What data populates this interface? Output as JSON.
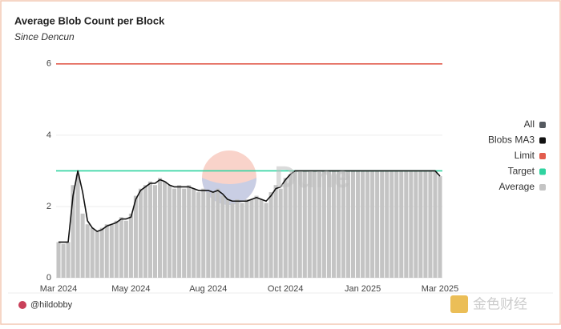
{
  "chart_data": {
    "type": "bar",
    "title": "Average Blob Count per Block",
    "subtitle": "Since Dencun",
    "watermark": "Dune",
    "source": "@hildobby",
    "logo_text": "金色财经",
    "categories": [
      "Mar 2024",
      null,
      null,
      null,
      null,
      null,
      null,
      null,
      null,
      null,
      null,
      null,
      null,
      null,
      null,
      "May 2024",
      null,
      null,
      null,
      null,
      null,
      null,
      null,
      null,
      null,
      null,
      null,
      null,
      null,
      null,
      null,
      "Aug 2024",
      null,
      null,
      null,
      null,
      null,
      null,
      null,
      null,
      null,
      null,
      null,
      null,
      null,
      null,
      null,
      "Oct 2024",
      null,
      null,
      null,
      null,
      null,
      null,
      null,
      null,
      null,
      null,
      null,
      null,
      null,
      null,
      null,
      "Jan 2025",
      null,
      null,
      null,
      null,
      null,
      null,
      null,
      null,
      null,
      null,
      null,
      null,
      null,
      null,
      null,
      "Mar 2025"
    ],
    "ylim": [
      0,
      6.4
    ],
    "yticks": [
      0,
      2,
      4,
      6
    ],
    "grid": true,
    "legend_position": "right",
    "series": [
      {
        "name": "All",
        "color": "#555a60"
      },
      {
        "name": "Blobs MA3",
        "type": "line",
        "color": "#111111",
        "values": [
          1.0,
          1.0,
          1.0,
          2.3,
          3.0,
          2.4,
          1.6,
          1.4,
          1.3,
          1.35,
          1.45,
          1.5,
          1.55,
          1.65,
          1.65,
          1.7,
          2.2,
          2.45,
          2.55,
          2.65,
          2.65,
          2.75,
          2.7,
          2.6,
          2.55,
          2.55,
          2.55,
          2.55,
          2.5,
          2.45,
          2.45,
          2.45,
          2.4,
          2.45,
          2.35,
          2.2,
          2.15,
          2.15,
          2.15,
          2.15,
          2.2,
          2.25,
          2.2,
          2.15,
          2.3,
          2.5,
          2.55,
          2.75,
          2.9,
          3.0,
          3.0,
          3.0,
          3.0,
          3.0,
          3.0,
          3.0,
          3.0,
          3.0,
          3.0,
          3.0,
          3.0,
          3.0,
          3.0,
          3.0,
          3.0,
          3.0,
          3.0,
          3.0,
          3.0,
          3.0,
          3.0,
          3.0,
          3.0,
          3.0,
          3.0,
          3.0,
          3.0,
          3.0,
          3.0,
          2.85
        ]
      },
      {
        "name": "Limit",
        "type": "hline",
        "color": "#e25c4d",
        "value": 6
      },
      {
        "name": "Target",
        "type": "hline",
        "color": "#2fd3a0",
        "value": 3
      },
      {
        "name": "Average",
        "type": "bar",
        "color": "#c4c4c4",
        "values": [
          1.0,
          0.95,
          1.0,
          2.6,
          2.9,
          1.8,
          1.5,
          1.4,
          1.3,
          1.4,
          1.5,
          1.5,
          1.6,
          1.7,
          1.6,
          1.8,
          2.3,
          2.5,
          2.6,
          2.7,
          2.6,
          2.8,
          2.7,
          2.6,
          2.5,
          2.6,
          2.5,
          2.6,
          2.5,
          2.4,
          2.5,
          2.4,
          2.4,
          2.5,
          2.3,
          2.2,
          2.1,
          2.2,
          2.1,
          2.2,
          2.2,
          2.3,
          2.2,
          2.1,
          2.4,
          2.6,
          2.5,
          2.8,
          2.9,
          3.0,
          3.0,
          3.0,
          3.0,
          3.0,
          3.0,
          3.0,
          3.0,
          3.0,
          3.0,
          3.0,
          3.0,
          3.0,
          3.0,
          3.0,
          3.0,
          3.0,
          3.0,
          3.0,
          3.0,
          3.0,
          3.0,
          3.0,
          3.0,
          3.0,
          3.0,
          3.0,
          3.0,
          3.0,
          3.0,
          2.85
        ]
      }
    ]
  }
}
